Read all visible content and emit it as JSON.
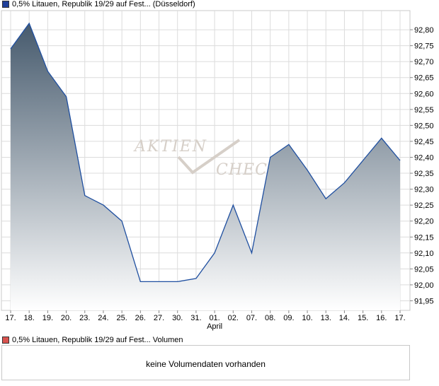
{
  "legend_price": {
    "label": "0,5% Litauen, Republik 19/29 auf Fest... (Düsseldorf)",
    "color": "#1f3f9a"
  },
  "legend_volume": {
    "label": "0,5% Litauen, Republik 19/29 auf Fest... Volumen",
    "color": "#d9534f"
  },
  "watermark": {
    "line1": "AKTIEN",
    "line2": "CHECK"
  },
  "volume": {
    "message": "keine Volumendaten vorhanden"
  },
  "chart_data": {
    "type": "area",
    "x": [
      "17.",
      "18.",
      "19.",
      "20.",
      "23.",
      "24.",
      "25.",
      "26.",
      "27.",
      "30.",
      "31.",
      "01.",
      "02.",
      "07.",
      "08.",
      "09.",
      "10.",
      "13.",
      "14.",
      "15.",
      "16.",
      "17."
    ],
    "month_labels": [
      {
        "at": "01.",
        "label": "April"
      }
    ],
    "series": [
      {
        "name": "0,5% Litauen, Republik 19/29 auf Fest... (Düsseldorf)",
        "values": [
          92.74,
          92.82,
          92.67,
          92.59,
          92.28,
          92.25,
          92.2,
          92.01,
          92.01,
          92.01,
          92.02,
          92.1,
          92.25,
          92.1,
          92.4,
          92.44,
          92.36,
          92.27,
          92.32,
          92.39,
          92.46,
          92.39
        ]
      }
    ],
    "yticks": [
      "91,95",
      "92,00",
      "92,05",
      "92,10",
      "92,15",
      "92,20",
      "92,25",
      "92,30",
      "92,35",
      "92,40",
      "92,45",
      "92,50",
      "92,55",
      "92,60",
      "92,65",
      "92,70",
      "92,75",
      "92,80"
    ],
    "ylim": [
      91.92,
      92.86
    ],
    "grid": true,
    "colors": {
      "line": "#1f4fa0",
      "fill_top": "#465a6d",
      "fill_bottom": "#ffffff",
      "grid": "#dcdcdc"
    }
  }
}
